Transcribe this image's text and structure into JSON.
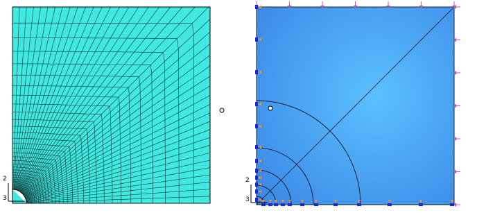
{
  "left_triad": {
    "up": "2",
    "out": "3"
  },
  "right_triad": {
    "up": "2",
    "out": "3"
  }
}
